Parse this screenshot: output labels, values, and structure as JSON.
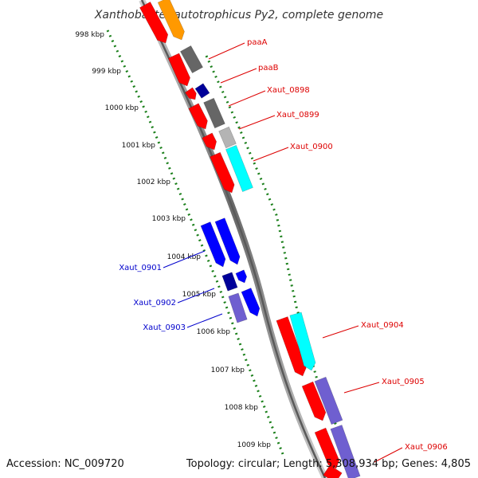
{
  "title": "Xanthobacter autotrophicus Py2, complete genome",
  "footer": {
    "accession": "Accession: NC_009720",
    "summary": "Topology: circular; Length: 5,308,934 bp; Genes: 4,805"
  },
  "kbp_labels": [
    "998 kbp",
    "999 kbp",
    "1000 kbp",
    "1001 kbp",
    "1002 kbp",
    "1003 kbp",
    "1004 kbp",
    "1005 kbp",
    "1006 kbp",
    "1007 kbp",
    "1008 kbp",
    "1009 kbp"
  ],
  "gene_labels_right": [
    "paaA",
    "paaB",
    "Xaut_0898",
    "Xaut_0899",
    "Xaut_0900",
    "Xaut_0904",
    "Xaut_0905",
    "Xaut_0906"
  ],
  "gene_labels_left": [
    "Xaut_0901",
    "Xaut_0902",
    "Xaut_0903"
  ],
  "colors": {
    "red": "#ff0000",
    "orange": "#ff9900",
    "gray": "#666666",
    "light_gray": "#b4b4b4",
    "navy": "#000099",
    "blue": "#0000ff",
    "cyan": "#00ffff",
    "slate": "#6f5fd0",
    "tick_green": "#1a7f1a",
    "label_red": "#dd0000",
    "label_blue": "#0000cc"
  }
}
